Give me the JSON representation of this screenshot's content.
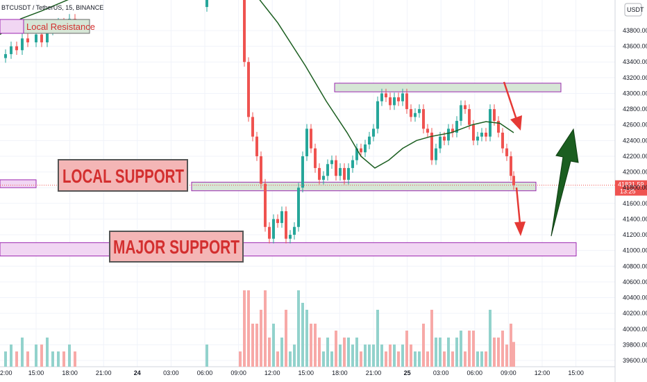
{
  "header": {
    "symbol_text": "BTCUSDT / TetherUS, 15, BINANCE",
    "currency_badge": "USDT"
  },
  "annotations": {
    "local_resistance": "Local Resistance",
    "local_support": "LOCAL SUPPORT",
    "major_support": "MAJOR SUPPORT"
  },
  "price_tag": {
    "value": "41831.59",
    "countdown": "13:25"
  },
  "colors": {
    "up": "#26a69a",
    "down": "#ef5350",
    "ma_line": "#1b5e20",
    "zone_gray_fill": "#d6e6d6",
    "zone_purple_fill": "#f1d6f3",
    "zone_purple_stroke": "#9c27b0",
    "label_fill": "#f4b6b6",
    "arrow_red": "#e53935",
    "arrow_green": "#1b5e20"
  },
  "chart_data": {
    "type": "candlestick",
    "exchange": "BINANCE",
    "interval": "15",
    "y_ticks": [
      39600,
      39800,
      40000,
      40200,
      40400,
      40600,
      40800,
      41000,
      41200,
      41400,
      41600,
      41800,
      42000,
      42200,
      42400,
      42600,
      42800,
      43000,
      43200,
      43400,
      43600,
      43800
    ],
    "x_ticks": [
      "15:00",
      "18:00",
      "21:00",
      "24",
      "03:00",
      "06:00",
      "09:00",
      "12:00",
      "15:00",
      "18:00",
      "21:00",
      "25",
      "03:00",
      "06:00",
      "09:00",
      "12:00",
      "15:00"
    ],
    "x_ticks_leading": "2:00",
    "last_price": 41831.59,
    "zones": [
      {
        "name": "local-resistance",
        "from": 43020,
        "to": 43130
      },
      {
        "name": "local-support",
        "from": 41760,
        "to": 41870
      },
      {
        "name": "major-support",
        "from": 40930,
        "to": 41100
      }
    ],
    "price_path": [
      [
        0,
        43450
      ],
      [
        8,
        43500
      ],
      [
        16,
        43600
      ],
      [
        24,
        43550
      ],
      [
        32,
        43700
      ],
      [
        40,
        43650
      ],
      [
        52,
        43750
      ],
      [
        60,
        43650
      ],
      [
        68,
        43800
      ],
      [
        76,
        43850
      ],
      [
        84,
        43900
      ],
      [
        92,
        43850
      ],
      [
        100,
        43950
      ],
      [
        108,
        43900
      ],
      [
        290,
        44100
      ],
      [
        298,
        44200
      ],
      [
        340,
        44300
      ],
      [
        346,
        44250
      ],
      [
        352,
        43400
      ],
      [
        358,
        42700
      ],
      [
        364,
        42450
      ],
      [
        370,
        42200
      ],
      [
        376,
        41850
      ],
      [
        382,
        41300
      ],
      [
        388,
        41150
      ],
      [
        394,
        41400
      ],
      [
        400,
        41350
      ],
      [
        406,
        41500
      ],
      [
        412,
        41150
      ],
      [
        418,
        41200
      ],
      [
        424,
        41300
      ],
      [
        430,
        41800
      ],
      [
        436,
        42200
      ],
      [
        442,
        42550
      ],
      [
        448,
        42300
      ],
      [
        454,
        42050
      ],
      [
        460,
        41900
      ],
      [
        466,
        41950
      ],
      [
        472,
        42100
      ],
      [
        478,
        42150
      ],
      [
        484,
        41950
      ],
      [
        490,
        42050
      ],
      [
        496,
        41900
      ],
      [
        502,
        42050
      ],
      [
        508,
        42150
      ],
      [
        514,
        42300
      ],
      [
        520,
        42250
      ],
      [
        526,
        42350
      ],
      [
        532,
        42450
      ],
      [
        538,
        42550
      ],
      [
        544,
        42900
      ],
      [
        550,
        43000
      ],
      [
        556,
        42950
      ],
      [
        562,
        42850
      ],
      [
        568,
        42950
      ],
      [
        574,
        42900
      ],
      [
        580,
        43000
      ],
      [
        586,
        42800
      ],
      [
        592,
        42700
      ],
      [
        598,
        42750
      ],
      [
        604,
        42800
      ],
      [
        610,
        42550
      ],
      [
        616,
        42500
      ],
      [
        622,
        42150
      ],
      [
        628,
        42300
      ],
      [
        634,
        42450
      ],
      [
        640,
        42400
      ],
      [
        646,
        42550
      ],
      [
        652,
        42500
      ],
      [
        658,
        42650
      ],
      [
        664,
        42850
      ],
      [
        670,
        42800
      ],
      [
        676,
        42600
      ],
      [
        682,
        42400
      ],
      [
        688,
        42450
      ],
      [
        694,
        42500
      ],
      [
        700,
        42450
      ],
      [
        706,
        42800
      ],
      [
        712,
        42650
      ],
      [
        718,
        42500
      ],
      [
        724,
        42300
      ],
      [
        730,
        42200
      ],
      [
        736,
        41950
      ],
      [
        740,
        41831.59
      ]
    ],
    "ma_path": [
      [
        0,
        43750
      ],
      [
        30,
        43950
      ],
      [
        60,
        44050
      ],
      [
        100,
        44200
      ],
      [
        140,
        44350
      ],
      [
        200,
        44450
      ],
      [
        300,
        44400
      ],
      [
        360,
        44350
      ],
      [
        400,
        43900
      ],
      [
        440,
        43350
      ],
      [
        470,
        42900
      ],
      [
        500,
        42500
      ],
      [
        520,
        42200
      ],
      [
        540,
        42050
      ],
      [
        560,
        42150
      ],
      [
        580,
        42300
      ],
      [
        600,
        42400
      ],
      [
        620,
        42450
      ],
      [
        650,
        42500
      ],
      [
        680,
        42600
      ],
      [
        700,
        42640
      ],
      [
        720,
        42620
      ],
      [
        740,
        42500
      ]
    ],
    "volume_path_note": "",
    "volume_y_ticks": []
  }
}
